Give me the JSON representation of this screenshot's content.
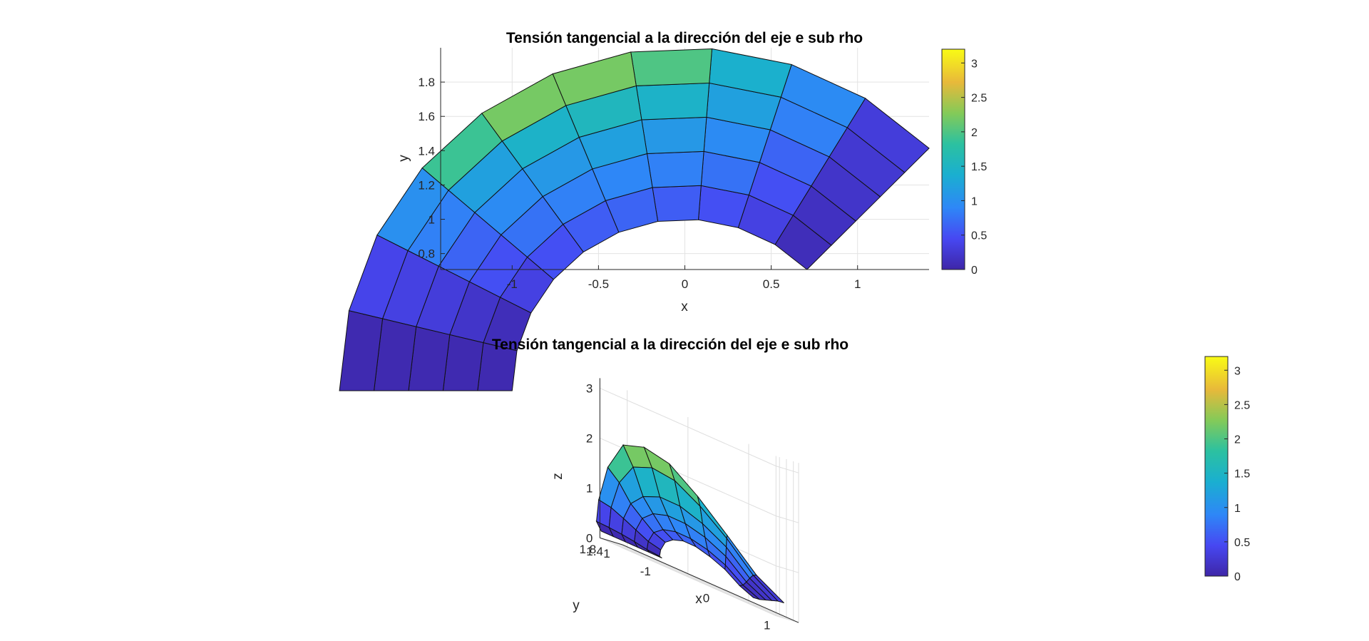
{
  "chart_data": [
    {
      "type": "heatmap",
      "subtype": "surface-2d-view",
      "title": "Tensión tangencial a la dirección del eje e sub rho",
      "xlabel": "x",
      "ylabel": "y",
      "xlim": [
        -1.414,
        1.414
      ],
      "ylim": [
        0.707,
        2.0
      ],
      "xticks": [
        "-1",
        "-0.5",
        "0",
        "0.5",
        "1"
      ],
      "yticks": [
        "0.8",
        "1",
        "1.2",
        "1.4",
        "1.6",
        "1.8"
      ],
      "grid": true,
      "colormap": "parula",
      "clim": [
        0,
        3.2
      ],
      "colorbar": {
        "ticks": [
          "0",
          "0.5",
          "1",
          "1.5",
          "2",
          "2.5",
          "3"
        ],
        "placement": "right"
      },
      "mesh": {
        "rho": [
          1.0,
          1.2,
          1.4,
          1.6,
          1.8,
          2.0
        ],
        "theta_deg": [
          45,
          58.5,
          72,
          85.5,
          99,
          112.5,
          126,
          139.5,
          153,
          166.5,
          180
        ]
      },
      "cell_values": [
        [
          0.1,
          0.35,
          0.5,
          0.6,
          0.65,
          0.6,
          0.5,
          0.35,
          0.1,
          0.05
        ],
        [
          0.15,
          0.5,
          0.75,
          0.85,
          0.9,
          0.85,
          0.75,
          0.5,
          0.2,
          0.05
        ],
        [
          0.2,
          0.65,
          0.95,
          1.1,
          1.2,
          1.1,
          0.95,
          0.65,
          0.3,
          0.05
        ],
        [
          0.25,
          0.85,
          1.2,
          1.45,
          1.55,
          1.45,
          1.2,
          0.85,
          0.35,
          0.05
        ],
        [
          0.3,
          0.95,
          1.4,
          2.0,
          2.2,
          2.2,
          1.9,
          1.0,
          0.4,
          0.05
        ]
      ]
    },
    {
      "type": "heatmap",
      "subtype": "surface-3d",
      "title": "Tensión tangencial a la dirección del eje e sub rho",
      "xlabel": "x",
      "ylabel": "y",
      "zlabel": "z",
      "xticks": [
        "-1",
        "0",
        "1"
      ],
      "yticks": [
        "1",
        "1.4",
        "1.8"
      ],
      "zticks": [
        "0",
        "1",
        "2",
        "3"
      ],
      "zlim": [
        0,
        3.2
      ],
      "grid": true,
      "colormap": "parula",
      "clim": [
        0,
        3.2
      ],
      "colorbar": {
        "ticks": [
          "0",
          "0.5",
          "1",
          "1.5",
          "2",
          "2.5",
          "3"
        ],
        "placement": "right"
      }
    }
  ]
}
